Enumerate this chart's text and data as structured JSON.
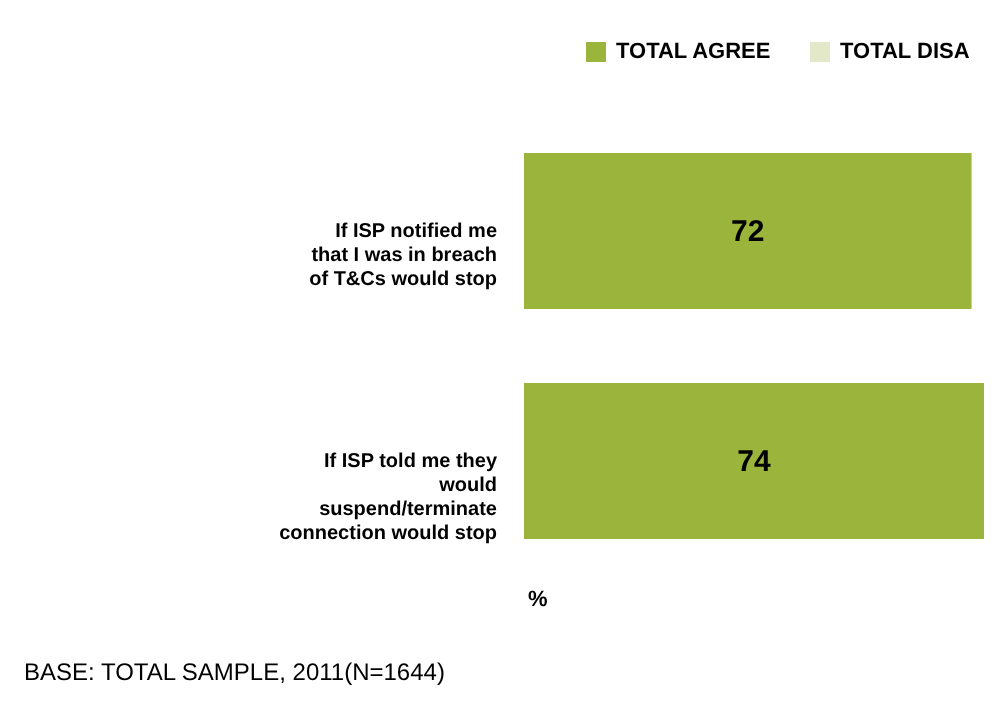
{
  "chart_data": {
    "type": "bar",
    "orientation": "horizontal",
    "stacked": true,
    "categories": [
      "If ISP notified me that I was in breach of T&Cs would stop",
      "If ISP told me they would suspend/terminate connection would stop"
    ],
    "series": [
      {
        "name": "TOTAL AGREE",
        "color": "#9bb43c",
        "values": [
          72,
          74
        ]
      },
      {
        "name": "TOTAL DISA",
        "color": "#e3e8c9",
        "values": [
          null,
          null
        ]
      }
    ],
    "tick_labels": "y",
    "data_labels": true,
    "legend": "top right",
    "grid": false,
    "annotations": [
      "%",
      "BASE: TOTAL SAMPLE, 2011(N=1644)"
    ]
  }
}
